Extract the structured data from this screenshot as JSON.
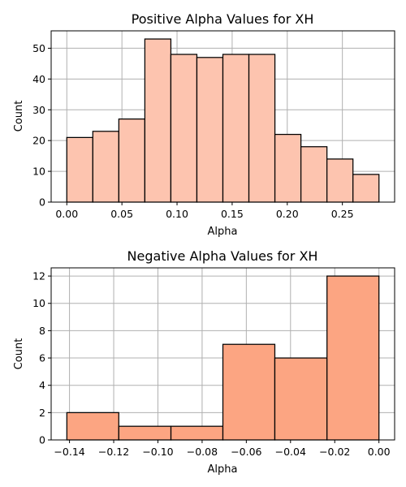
{
  "chart_data": [
    {
      "type": "bar",
      "title": "Positive Alpha Values for XH",
      "xlabel": "Alpha",
      "ylabel": "Count",
      "color": "#fdc4af",
      "bin_edges": [
        0.0,
        0.0236,
        0.0472,
        0.0708,
        0.0944,
        0.118,
        0.1416,
        0.1652,
        0.1888,
        0.2124,
        0.236,
        0.2596,
        0.2832
      ],
      "values": [
        21,
        23,
        27,
        53,
        48,
        47,
        48,
        48,
        22,
        18,
        14,
        9
      ],
      "xlim": [
        -0.0142,
        0.2974
      ],
      "ylim": [
        0,
        55.65
      ],
      "xticks": [
        0.0,
        0.05,
        0.1,
        0.15,
        0.2,
        0.25
      ],
      "xtick_labels": [
        "0.00",
        "0.05",
        "0.10",
        "0.15",
        "0.20",
        "0.25"
      ],
      "yticks": [
        0,
        10,
        20,
        30,
        40,
        50
      ],
      "ytick_labels": [
        "0",
        "10",
        "20",
        "30",
        "40",
        "50"
      ],
      "grid": true
    },
    {
      "type": "bar",
      "title": "Negative Alpha Values for XH",
      "xlabel": "Alpha",
      "ylabel": "Count",
      "color": "#fca582",
      "bin_edges": [
        -0.1412,
        -0.1177,
        -0.0941,
        -0.0706,
        -0.0471,
        -0.0235,
        0.0
      ],
      "values": [
        2,
        1,
        1,
        7,
        6,
        12
      ],
      "xlim": [
        -0.1483,
        0.0071
      ],
      "ylim": [
        0,
        12.6
      ],
      "xticks": [
        -0.14,
        -0.12,
        -0.1,
        -0.08,
        -0.06,
        -0.04,
        -0.02,
        0.0
      ],
      "xtick_labels": [
        "−0.14",
        "−0.12",
        "−0.10",
        "−0.08",
        "−0.06",
        "−0.04",
        "−0.02",
        "0.00"
      ],
      "yticks": [
        0,
        2,
        4,
        6,
        8,
        10,
        12
      ],
      "ytick_labels": [
        "0",
        "2",
        "4",
        "6",
        "8",
        "10",
        "12"
      ],
      "grid": true
    }
  ]
}
